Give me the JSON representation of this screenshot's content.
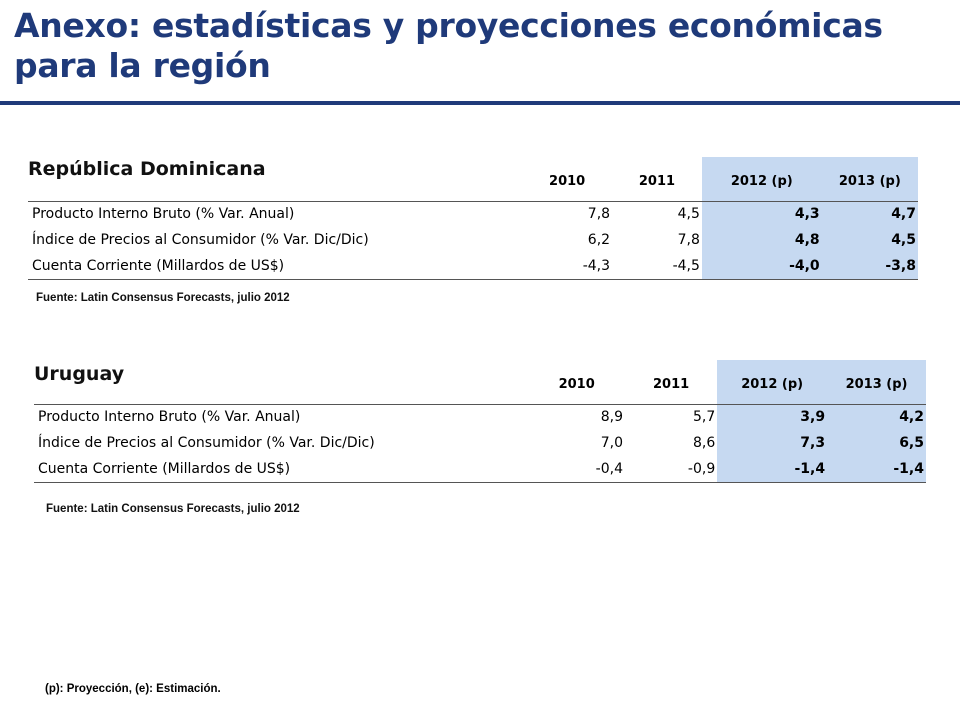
{
  "header": {
    "title_line1": "Anexo: estadísticas y proyecciones económicas",
    "title_line2": "para la región"
  },
  "sections": [
    {
      "title": "República Dominicana",
      "columns": [
        "2010",
        "2011",
        "2012 (p)",
        "2013 (p)"
      ],
      "rows": [
        {
          "label": "Producto Interno Bruto (% Var. Anual)",
          "values": [
            "7,8",
            "4,5",
            "4,3",
            "4,7"
          ]
        },
        {
          "label": "Índice de Precios al Consumidor (% Var. Dic/Dic)",
          "values": [
            "6,2",
            "7,8",
            "4,8",
            "4,5"
          ]
        },
        {
          "label": "Cuenta Corriente (Millardos de US$)",
          "values": [
            "-4,3",
            "-4,5",
            "-4,0",
            "-3,8"
          ]
        }
      ],
      "source": "Fuente: Latin Consensus Forecasts, julio 2012"
    },
    {
      "title": "Uruguay",
      "columns": [
        "2010",
        "2011",
        "2012 (p)",
        "2013 (p)"
      ],
      "rows": [
        {
          "label": "Producto Interno Bruto (% Var. Anual)",
          "values": [
            "8,9",
            "5,7",
            "3,9",
            "4,2"
          ]
        },
        {
          "label": "Índice de Precios al Consumidor (% Var. Dic/Dic)",
          "values": [
            "7,0",
            "8,6",
            "7,3",
            "6,5"
          ]
        },
        {
          "label": "Cuenta Corriente (Millardos de US$)",
          "values": [
            "-0,4",
            "-0,9",
            "-1,4",
            "-1,4"
          ]
        }
      ],
      "source": "Fuente: Latin Consensus Forecasts, julio 2012"
    }
  ],
  "footnote": "(p): Proyección, (e): Estimación.",
  "colors": {
    "title": "#1f3a7a",
    "projection_highlight": "#c6d9f1"
  }
}
